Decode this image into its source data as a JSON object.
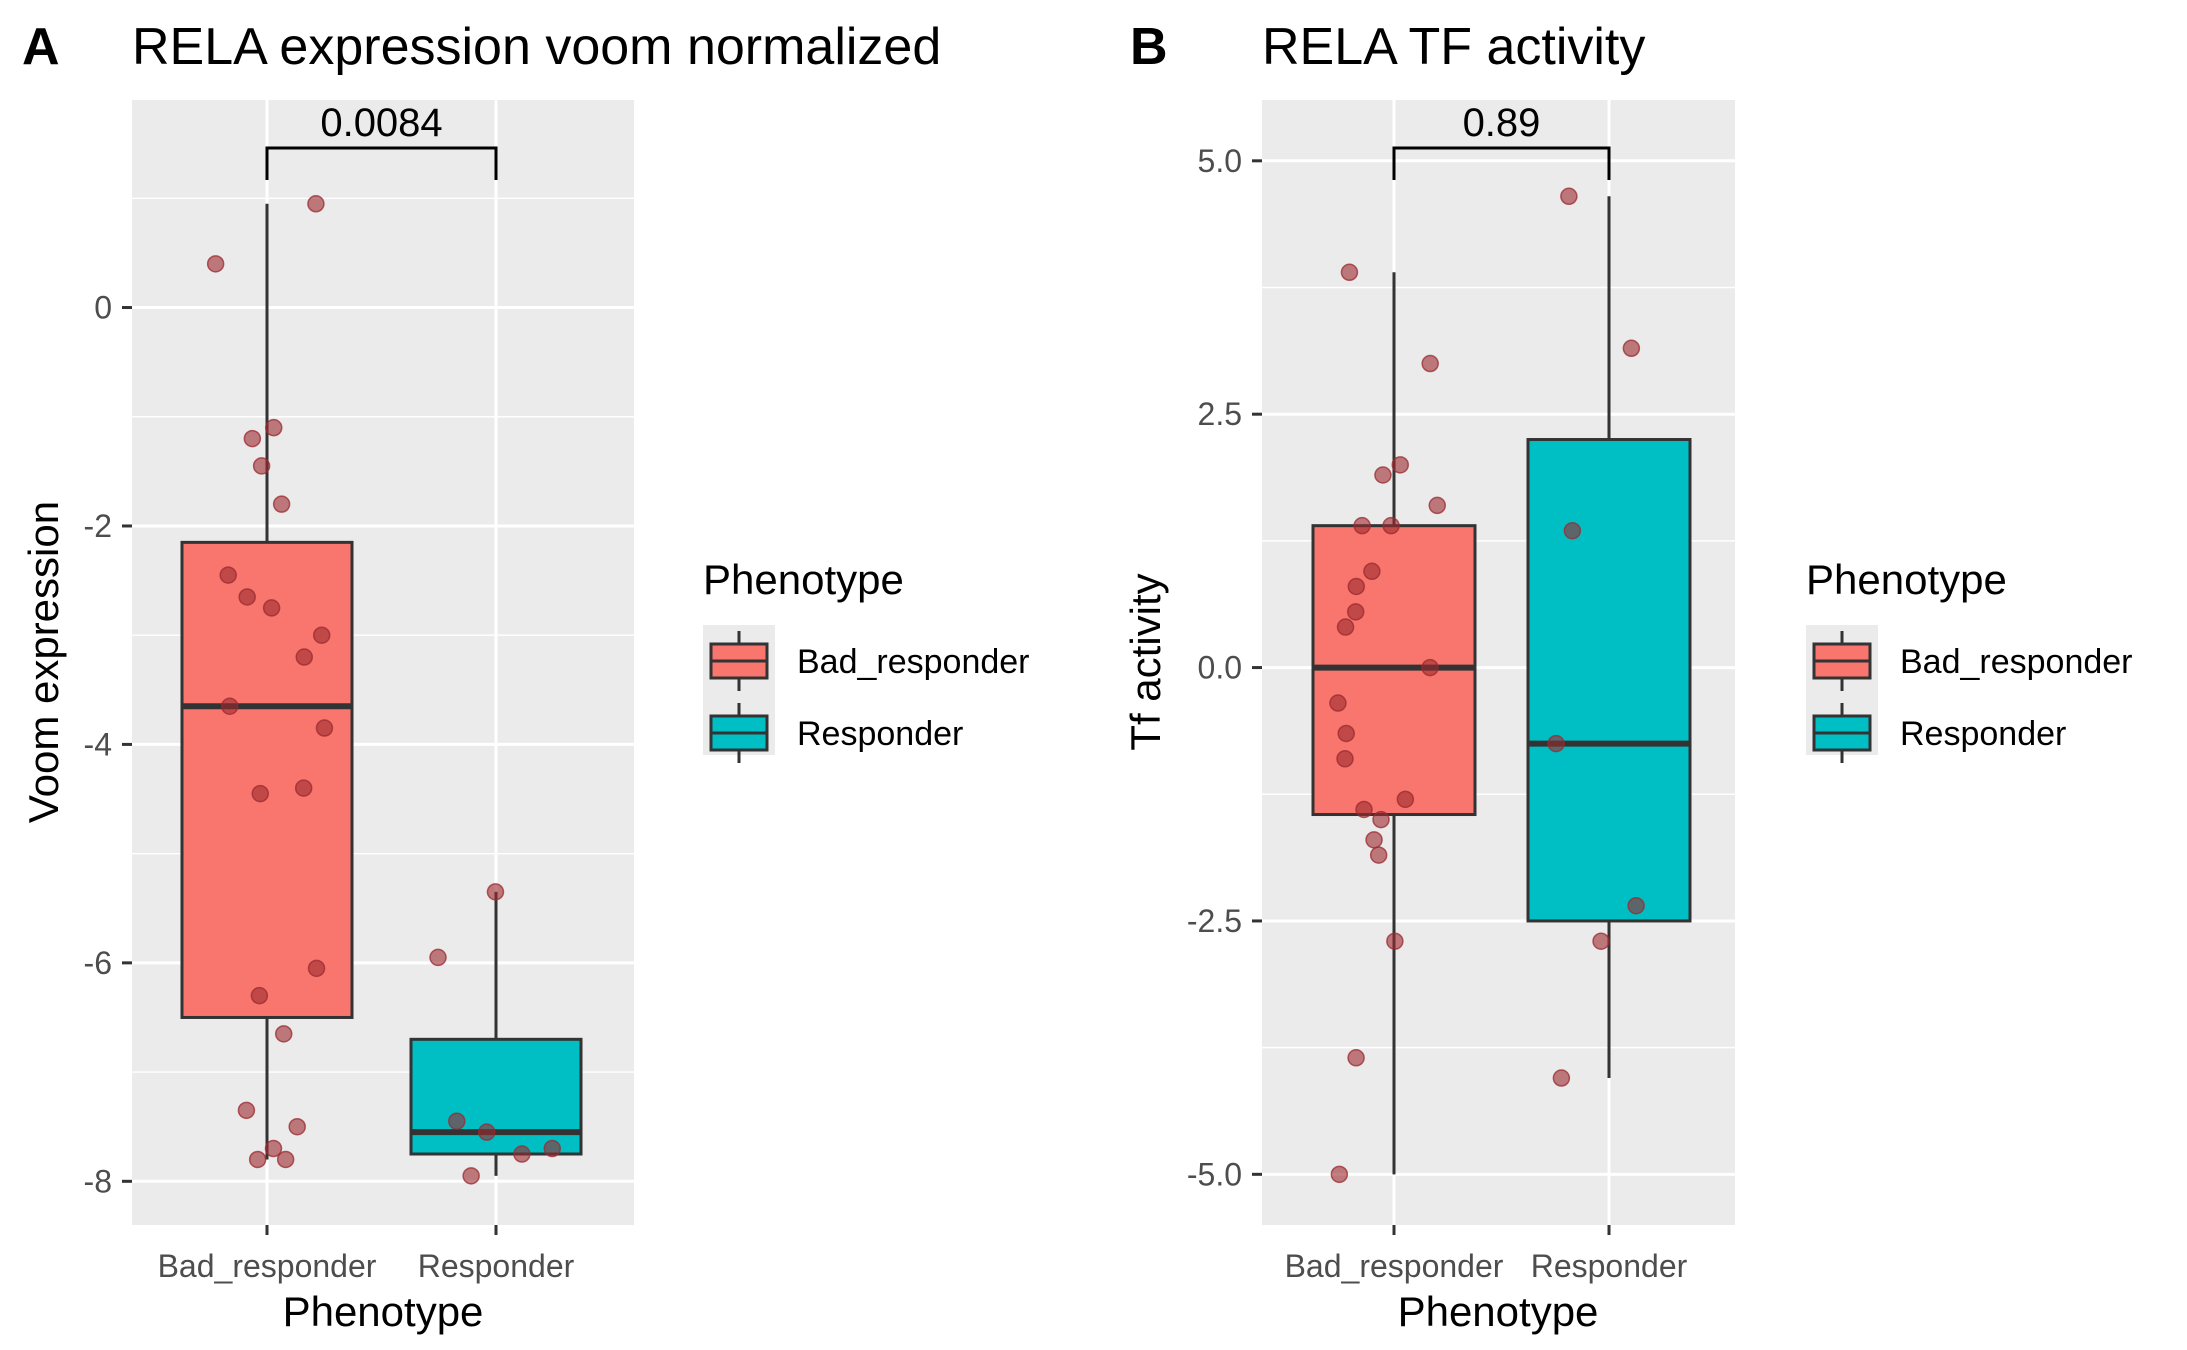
{
  "chart_data": [
    {
      "type": "box",
      "panel_label": "A",
      "title": "RELA expression voom normalized",
      "xlabel": "Phenotype",
      "ylabel": "Voom expression",
      "categories": [
        "Bad_responder",
        "Responder"
      ],
      "ylim": [
        -8.4,
        1.9
      ],
      "yticks": [
        0,
        -2,
        -4,
        -6,
        -8
      ],
      "ytick_labels": [
        "0",
        "-2",
        "-4",
        "-6",
        "-8"
      ],
      "grid": true,
      "comparison": {
        "label": "0.0084",
        "from": "Bad_responder",
        "to": "Responder"
      },
      "boxes": [
        {
          "category": "Bad_responder",
          "q1": -6.5,
          "median": -3.65,
          "q3": -2.15,
          "whisker_low": -7.8,
          "whisker_high": 0.95
        },
        {
          "category": "Responder",
          "q1": -7.75,
          "median": -7.55,
          "q3": -6.7,
          "whisker_low": -7.95,
          "whisker_high": -5.35
        }
      ],
      "points": [
        {
          "category": "Bad_responder",
          "y": [
            0.95,
            0.4,
            -1.1,
            -1.2,
            -1.45,
            -1.8,
            -2.45,
            -2.65,
            -2.75,
            -3.0,
            -3.2,
            -3.65,
            -3.85,
            -4.4,
            -4.45,
            -6.05,
            -6.3,
            -6.65,
            -7.35,
            -7.5,
            -7.7,
            -7.8,
            -7.8
          ]
        },
        {
          "category": "Responder",
          "y": [
            -5.35,
            -5.95,
            -7.45,
            -7.55,
            -7.7,
            -7.75,
            -7.95
          ]
        }
      ],
      "legend": {
        "title": "Phenotype",
        "position": "right",
        "entries": [
          "Bad_responder",
          "Responder"
        ]
      }
    },
    {
      "type": "box",
      "panel_label": "B",
      "title": "RELA TF activity",
      "xlabel": "Phenotype",
      "ylabel": "Tf activity",
      "categories": [
        "Bad_responder",
        "Responder"
      ],
      "ylim": [
        -5.5,
        5.6
      ],
      "yticks": [
        5.0,
        2.5,
        0.0,
        -2.5,
        -5.0
      ],
      "ytick_labels": [
        "5.0",
        "2.5",
        "0.0",
        "-2.5",
        "-5.0"
      ],
      "grid": true,
      "comparison": {
        "label": "0.89",
        "from": "Bad_responder",
        "to": "Responder"
      },
      "boxes": [
        {
          "category": "Bad_responder",
          "q1": -1.45,
          "median": 0.0,
          "q3": 1.4,
          "whisker_low": -5.0,
          "whisker_high": 3.9
        },
        {
          "category": "Responder",
          "q1": -2.5,
          "median": -0.75,
          "q3": 2.25,
          "whisker_low": -4.05,
          "whisker_high": 4.65
        }
      ],
      "points": [
        {
          "category": "Bad_responder",
          "y": [
            3.9,
            3.0,
            2.0,
            1.9,
            1.6,
            1.4,
            1.4,
            0.95,
            0.8,
            0.55,
            0.4,
            0.0,
            -0.35,
            -0.65,
            -0.9,
            -1.3,
            -1.4,
            -1.5,
            -1.7,
            -1.85,
            -2.7,
            -3.85,
            -5.0
          ]
        },
        {
          "category": "Responder",
          "y": [
            4.65,
            3.15,
            1.35,
            -0.75,
            -2.35,
            -2.7,
            -4.05
          ]
        }
      ],
      "legend": {
        "title": "Phenotype",
        "position": "right",
        "entries": [
          "Bad_responder",
          "Responder"
        ]
      }
    }
  ],
  "colors": {
    "Bad_responder": "#F8766D",
    "Responder": "#00BFC4",
    "point": "#9B2A2F",
    "panel_bg": "#EBEBEB",
    "grid": "#FFFFFF",
    "box_line": "#333333"
  }
}
